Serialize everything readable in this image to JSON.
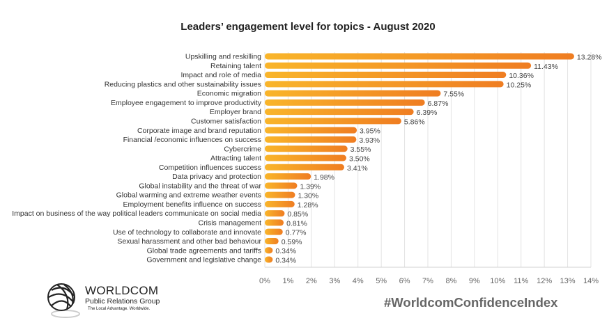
{
  "chart_data": {
    "type": "bar",
    "orientation": "horizontal",
    "title": "Leaders’ engagement level for topics - August 2020",
    "categories": [
      "Upskilling and reskilling",
      "Retaining talent",
      "Impact and role of media",
      "Reducing plastics and other sustainability issues",
      "Economic migration",
      "Employee engagement to improve productivity",
      "Employer brand",
      "Customer satisfaction",
      "Corporate image and brand reputation",
      "Financial /economic influences on success",
      "Cybercrime",
      "Attracting talent",
      "Competition influences success",
      "Data privacy and protection",
      "Global instability and the threat of war",
      "Global warming and extreme weather events",
      "Employment benefits influence on success",
      "Impact on business of the way political leaders communicate on social media",
      "Crisis management",
      "Use of technology to collaborate and innovate",
      "Sexual harassment and other bad behaviour",
      "Global trade agreements and tariffs",
      "Government and legislative change"
    ],
    "values": [
      13.28,
      11.43,
      10.36,
      10.25,
      7.55,
      6.87,
      6.39,
      5.86,
      3.95,
      3.93,
      3.55,
      3.5,
      3.41,
      1.98,
      1.39,
      1.3,
      1.28,
      0.85,
      0.81,
      0.77,
      0.59,
      0.34,
      0.34
    ],
    "data_labels": [
      "13.28%",
      "11.43%",
      "10.36%",
      "10.25%",
      "7.55%",
      "6.87%",
      "6.39%",
      "5.86%",
      "3.95%",
      "3.93%",
      "3.55%",
      "3.50%",
      "3.41%",
      "1.98%",
      "1.39%",
      "1.30%",
      "1.28%",
      "0.85%",
      "0.81%",
      "0.77%",
      "0.59%",
      "0.34%",
      "0.34%"
    ],
    "xlim": [
      0,
      14
    ],
    "x_ticks": [
      "0%",
      "1%",
      "2%",
      "3%",
      "4%",
      "5%",
      "6%",
      "7%",
      "8%",
      "9%",
      "10%",
      "11%",
      "12%",
      "13%",
      "14%"
    ],
    "grid": true,
    "colors": {
      "bar_start": "#F9B52A",
      "bar_end": "#EF7D22",
      "grid": "#E3E3E3"
    }
  },
  "footer": {
    "hashtag": "#WorldcomConfidenceIndex",
    "logo": {
      "name": "WORLDCOM",
      "subtitle": "Public Relations Group",
      "tagline": "The Local Advantage. Worldwide."
    }
  }
}
